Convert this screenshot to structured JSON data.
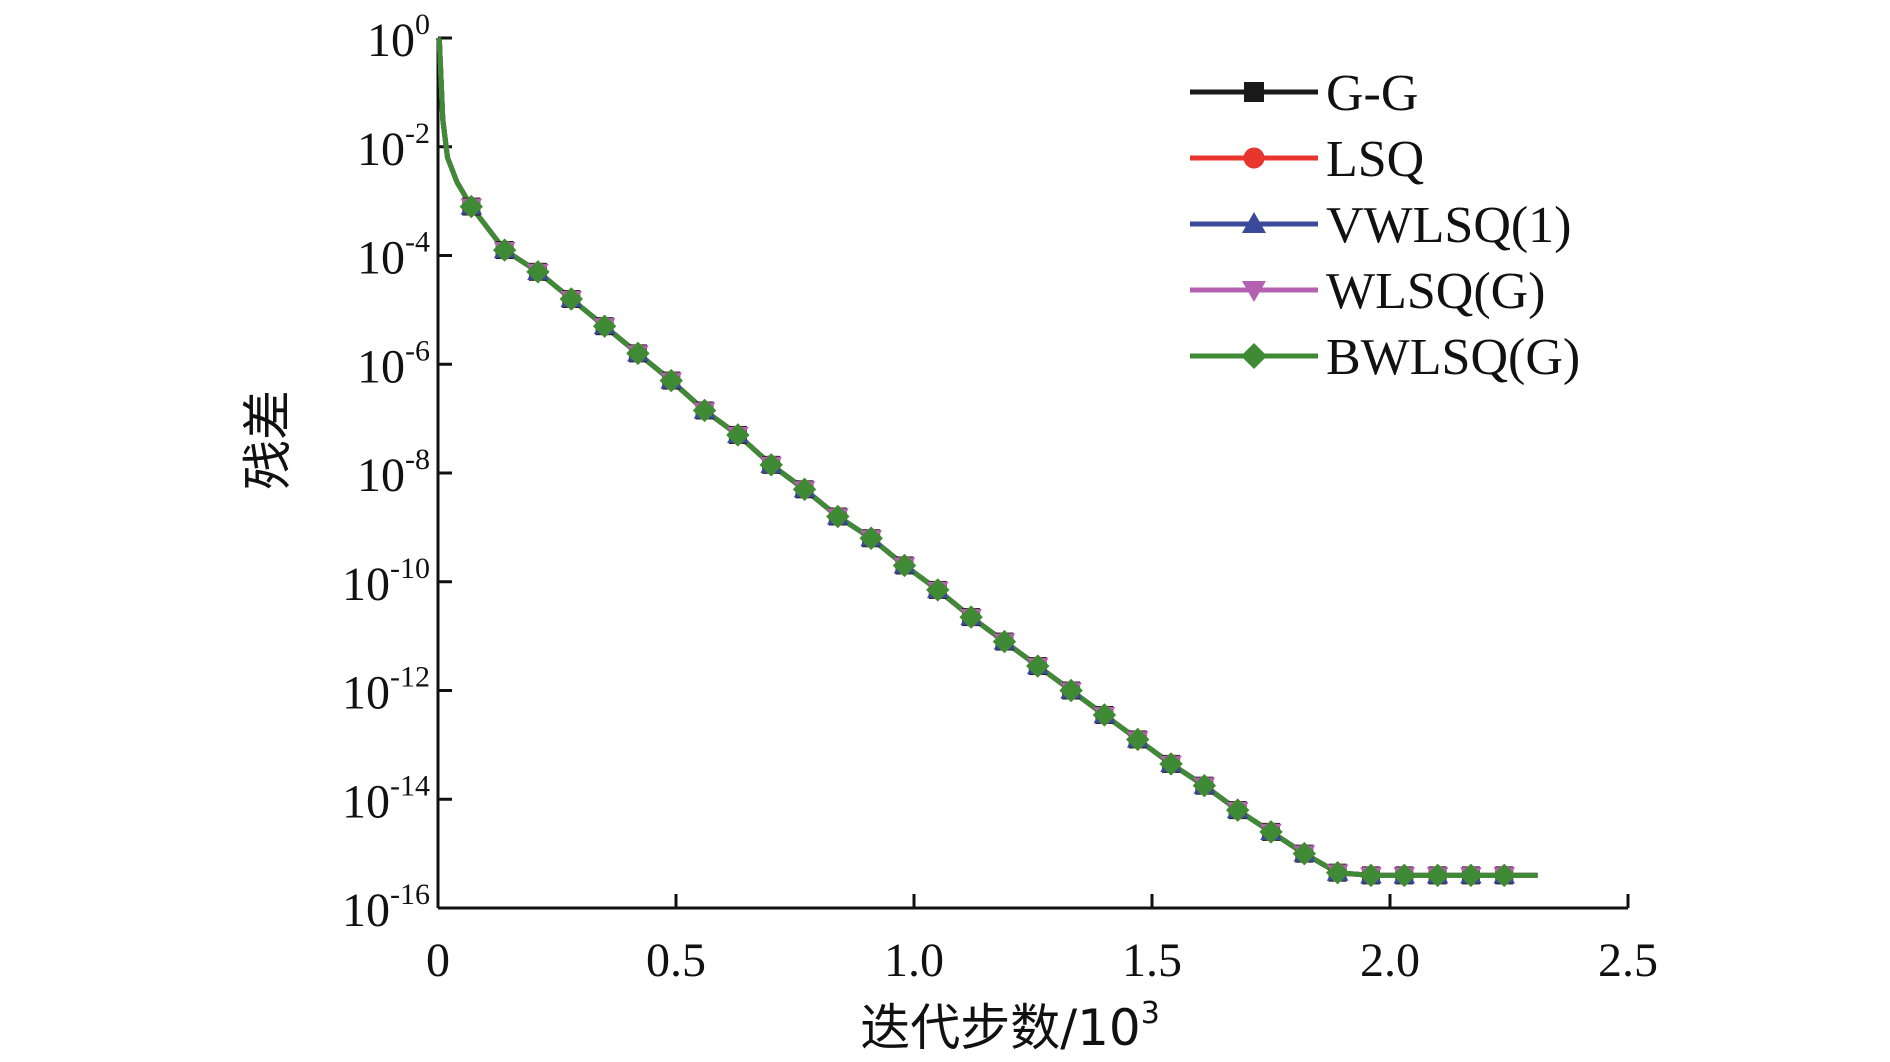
{
  "chart_data": {
    "type": "line",
    "xlabel": "迭代步数/10",
    "xlabel_sup": "3",
    "ylabel": "残差",
    "xlim": [
      0,
      2.5
    ],
    "ylim_log10": [
      -16,
      0
    ],
    "y_scale": "log",
    "x_ticks": [
      "0",
      "0.5",
      "1.0",
      "1.5",
      "2.0",
      "2.5"
    ],
    "x_tick_values": [
      0,
      0.5,
      1.0,
      1.5,
      2.0,
      2.5
    ],
    "y_ticks": [
      {
        "base": "10",
        "exp": "0"
      },
      {
        "base": "10",
        "exp": "-2"
      },
      {
        "base": "10",
        "exp": "-4"
      },
      {
        "base": "10",
        "exp": "-6"
      },
      {
        "base": "10",
        "exp": "-8"
      },
      {
        "base": "10",
        "exp": "-10"
      },
      {
        "base": "10",
        "exp": "-12"
      },
      {
        "base": "10",
        "exp": "-14"
      },
      {
        "base": "10",
        "exp": "-16"
      }
    ],
    "y_tick_values": [
      0,
      -2,
      -4,
      -6,
      -8,
      -10,
      -12,
      -14,
      -16
    ],
    "grid": false,
    "legend_position": "top-right",
    "series": [
      {
        "name": "G-G",
        "color": "#1a1a1a",
        "marker": "square"
      },
      {
        "name": "LSQ",
        "color": "#e8352e",
        "marker": "circle"
      },
      {
        "name": "VWLSQ(1)",
        "color": "#3a4a9a",
        "marker": "triangle-up"
      },
      {
        "name": "WLSQ(G)",
        "color": "#b560b0",
        "marker": "triangle-down"
      },
      {
        "name": "BWLSQ(G)",
        "color": "#3e8a35",
        "marker": "diamond"
      }
    ],
    "shared_curve": {
      "x": [
        0,
        0.003,
        0.01,
        0.02,
        0.04,
        0.07,
        0.14,
        0.21,
        0.28,
        0.35,
        0.42,
        0.49,
        0.56,
        0.63,
        0.7,
        0.77,
        0.84,
        0.91,
        0.98,
        1.05,
        1.12,
        1.19,
        1.26,
        1.33,
        1.4,
        1.47,
        1.54,
        1.61,
        1.68,
        1.75,
        1.82,
        1.89,
        1.96,
        2.03,
        2.1,
        2.17,
        2.24,
        2.31
      ],
      "log10_y": [
        0,
        -0.05,
        -1.5,
        -2.2,
        -2.65,
        -3.1,
        -3.9,
        -4.3,
        -4.8,
        -5.3,
        -5.8,
        -6.3,
        -6.85,
        -7.3,
        -7.85,
        -8.3,
        -8.8,
        -9.2,
        -9.7,
        -10.15,
        -10.65,
        -11.1,
        -11.55,
        -12.0,
        -12.45,
        -12.9,
        -13.35,
        -13.75,
        -14.2,
        -14.6,
        -15.0,
        -15.35,
        -15.7,
        -15.95,
        -16.1,
        -16.2,
        -16.25,
        -16.3
      ]
    },
    "marker_x": [
      0.07,
      0.14,
      0.21,
      0.28,
      0.35,
      0.42,
      0.49,
      0.56,
      0.63,
      0.7,
      0.77,
      0.84,
      0.91,
      0.98,
      1.05,
      1.12,
      1.19,
      1.26,
      1.33,
      1.4,
      1.47,
      1.54,
      1.61,
      1.68,
      1.75,
      1.82,
      1.89,
      1.96,
      2.03,
      2.1,
      2.17,
      2.24
    ]
  }
}
